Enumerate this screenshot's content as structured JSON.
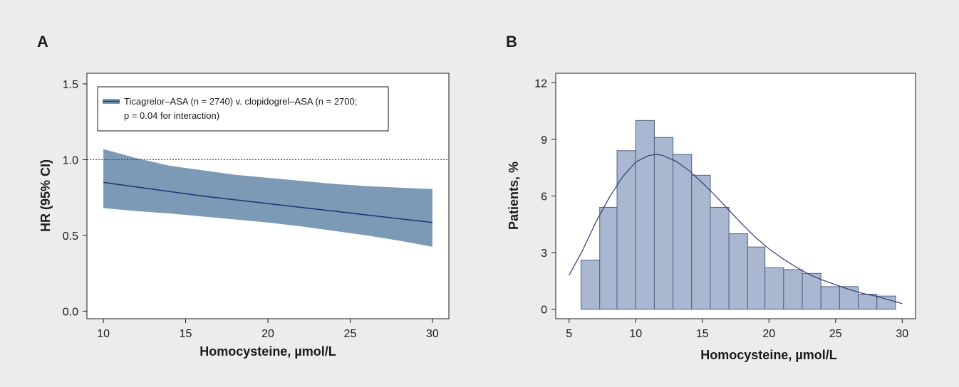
{
  "colors": {
    "background": "#ececec",
    "band_fill": "#7c9ab5",
    "line": "#1f2f7a",
    "bar_fill": "#a9b7d0",
    "bar_stroke": "#4e5f86",
    "curve": "#2e3a78"
  },
  "chart_data": [
    {
      "panel": "A",
      "type": "line",
      "xlabel": "Homocysteine, µmol/L",
      "ylabel": "HR (95% CI)",
      "xlim": [
        9,
        31
      ],
      "ylim": [
        -0.05,
        1.57
      ],
      "xticks": [
        "10",
        "15",
        "20",
        "25",
        "30"
      ],
      "yticks": [
        "0.0",
        "0.5",
        "1.0",
        "1.5"
      ],
      "reference_line": 1.0,
      "legend": {
        "position": "top-left",
        "line1": "Ticagrelor–ASA (n = 2740) v. clopidogrel–ASA (n = 2700;",
        "line2": "p = 0.04 for interaction)"
      },
      "series": [
        {
          "name": "Ticagrelor–ASA (n = 2740) v. clopidogrel–ASA (n = 2700; p = 0.04 for interaction)",
          "x": [
            10,
            12,
            14,
            16,
            18,
            20,
            22,
            24,
            26,
            28,
            30
          ],
          "y": [
            0.85,
            0.82,
            0.79,
            0.76,
            0.735,
            0.71,
            0.685,
            0.66,
            0.635,
            0.61,
            0.585
          ],
          "lower": [
            0.68,
            0.66,
            0.645,
            0.625,
            0.605,
            0.585,
            0.56,
            0.53,
            0.5,
            0.465,
            0.425
          ],
          "upper": [
            1.07,
            1.01,
            0.96,
            0.93,
            0.9,
            0.88,
            0.86,
            0.84,
            0.825,
            0.815,
            0.805
          ]
        }
      ]
    },
    {
      "panel": "B",
      "type": "bar",
      "subtype": "histogram",
      "xlabel": "Homocysteine, µmol/L",
      "ylabel": "Patients, %",
      "xlim": [
        4,
        31
      ],
      "ylim": [
        -0.5,
        12.5
      ],
      "xticks": [
        "5",
        "10",
        "15",
        "20",
        "25",
        "30"
      ],
      "yticks": [
        "0",
        "3",
        "6",
        "9",
        "12"
      ],
      "bin_edges": [
        5.9,
        7.3,
        8.6,
        10.0,
        11.4,
        12.8,
        14.2,
        15.6,
        17.0,
        18.4,
        19.7,
        21.1,
        22.5,
        23.9,
        25.3,
        26.7,
        28.1,
        29.5
      ],
      "values": [
        2.6,
        5.4,
        8.4,
        10.0,
        9.1,
        8.2,
        7.1,
        5.4,
        4.0,
        3.3,
        2.2,
        2.1,
        1.9,
        1.2,
        1.2,
        0.8,
        0.7,
        0.6
      ],
      "fit_curve": {
        "x": [
          5,
          6,
          7,
          8,
          9,
          10,
          11,
          11.6,
          12,
          13,
          14,
          15,
          16,
          17,
          18,
          19,
          20,
          21,
          22,
          23,
          24,
          25,
          26,
          27,
          28,
          29,
          30
        ],
        "y": [
          1.8,
          3.1,
          4.6,
          5.9,
          7.0,
          7.8,
          8.15,
          8.2,
          8.15,
          7.85,
          7.35,
          6.7,
          6.0,
          5.25,
          4.5,
          3.8,
          3.2,
          2.7,
          2.25,
          1.85,
          1.55,
          1.3,
          1.05,
          0.85,
          0.7,
          0.5,
          0.3
        ]
      }
    }
  ]
}
